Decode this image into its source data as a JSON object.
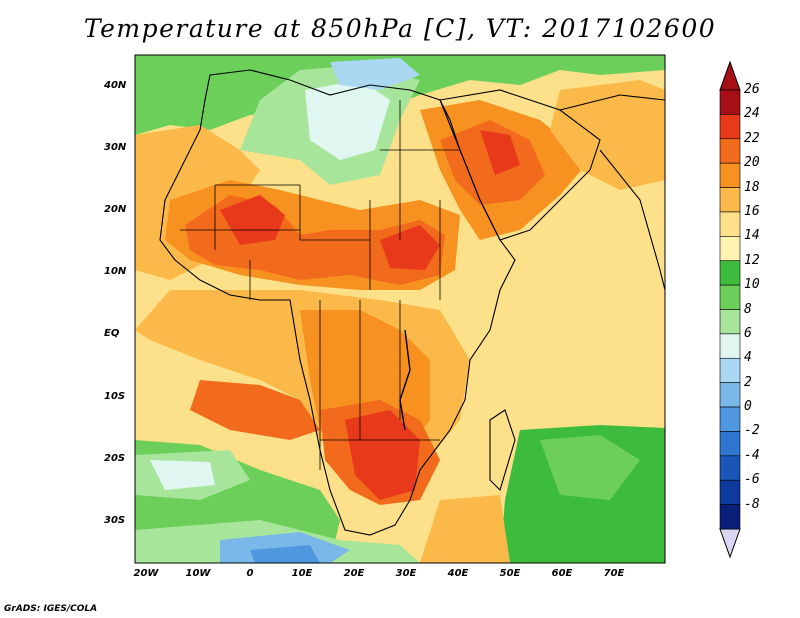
{
  "title": "Temperature at 850hPa [C], VT: 2017102600",
  "credit": "GrADS: IGES/COLA",
  "map": {
    "lat_labels": [
      "40N",
      "30N",
      "20N",
      "10N",
      "EQ",
      "10S",
      "20S",
      "30S"
    ],
    "lon_labels": [
      "20W",
      "10W",
      "0",
      "10E",
      "20E",
      "30E",
      "40E",
      "50E",
      "60E",
      "70E"
    ]
  },
  "colorbar": {
    "labels": [
      "26",
      "24",
      "22",
      "20",
      "18",
      "16",
      "14",
      "12",
      "10",
      "8",
      "6",
      "4",
      "2",
      "0",
      "-2",
      "-4",
      "-6",
      "-8"
    ],
    "colors": [
      "#a50f15",
      "#e8391a",
      "#f26a1b",
      "#f7911f",
      "#fbb94a",
      "#fde08a",
      "#fef3b0",
      "#3dbb3d",
      "#6ccf59",
      "#a7e59a",
      "#dff7f0",
      "#aad7f2",
      "#7ab8ea",
      "#4f97df",
      "#2e76d0",
      "#1a56b8",
      "#0d3a9c",
      "#0a1f7a"
    ]
  }
}
